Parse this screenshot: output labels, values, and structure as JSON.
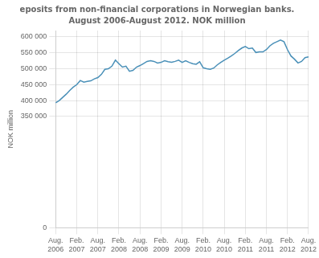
{
  "chart_data": {
    "type": "line",
    "title": "eposits from non-financial corporations in Norwegian banks.",
    "subtitle": "August 2006-August 2012. NOK million",
    "y_label": "NOK million",
    "color": "#4a90b8",
    "grid": true,
    "ylim": [
      0,
      620000
    ],
    "yticks": [
      0,
      {
        "value": 350000,
        "label": "350 000"
      },
      {
        "value": 400000,
        "label": "400 000"
      },
      {
        "value": 450000,
        "label": "450 000"
      },
      {
        "value": 500000,
        "label": "500 000"
      },
      {
        "value": 550000,
        "label": "550 000"
      },
      {
        "value": 600000,
        "label": "600 000"
      }
    ],
    "categories": [
      "Aug. 2006",
      null,
      null,
      null,
      null,
      null,
      "Feb. 2007",
      null,
      null,
      null,
      null,
      null,
      "Aug. 2007",
      null,
      null,
      null,
      null,
      null,
      "Feb. 2008",
      null,
      null,
      null,
      null,
      null,
      "Aug. 2008",
      null,
      null,
      null,
      null,
      null,
      "Feb. 2009",
      null,
      null,
      null,
      null,
      null,
      "Aug. 2009",
      null,
      null,
      null,
      null,
      null,
      "Feb. 2010",
      null,
      null,
      null,
      null,
      null,
      "Aug. 2010",
      null,
      null,
      null,
      null,
      null,
      "Feb. 2011",
      null,
      null,
      null,
      null,
      null,
      "Aug. 2011",
      null,
      null,
      null,
      null,
      null,
      "Feb. 2012",
      null,
      null,
      null,
      null,
      null,
      "Aug. 2012"
    ],
    "values": [
      393000,
      400000,
      410000,
      420000,
      432000,
      442000,
      450000,
      463000,
      458000,
      460000,
      462000,
      468000,
      472000,
      482000,
      498000,
      500000,
      508000,
      527000,
      516000,
      505000,
      508000,
      492000,
      495000,
      505000,
      510000,
      516000,
      523000,
      525000,
      523000,
      518000,
      520000,
      525000,
      522000,
      520000,
      523000,
      527000,
      520000,
      525000,
      520000,
      516000,
      514000,
      522000,
      503000,
      500000,
      498000,
      502000,
      512000,
      520000,
      527000,
      533000,
      540000,
      548000,
      557000,
      565000,
      570000,
      563000,
      565000,
      551000,
      553000,
      553000,
      560000,
      572000,
      580000,
      585000,
      590000,
      585000,
      560000,
      540000,
      530000,
      518000,
      523000,
      535000,
      537000
    ]
  }
}
